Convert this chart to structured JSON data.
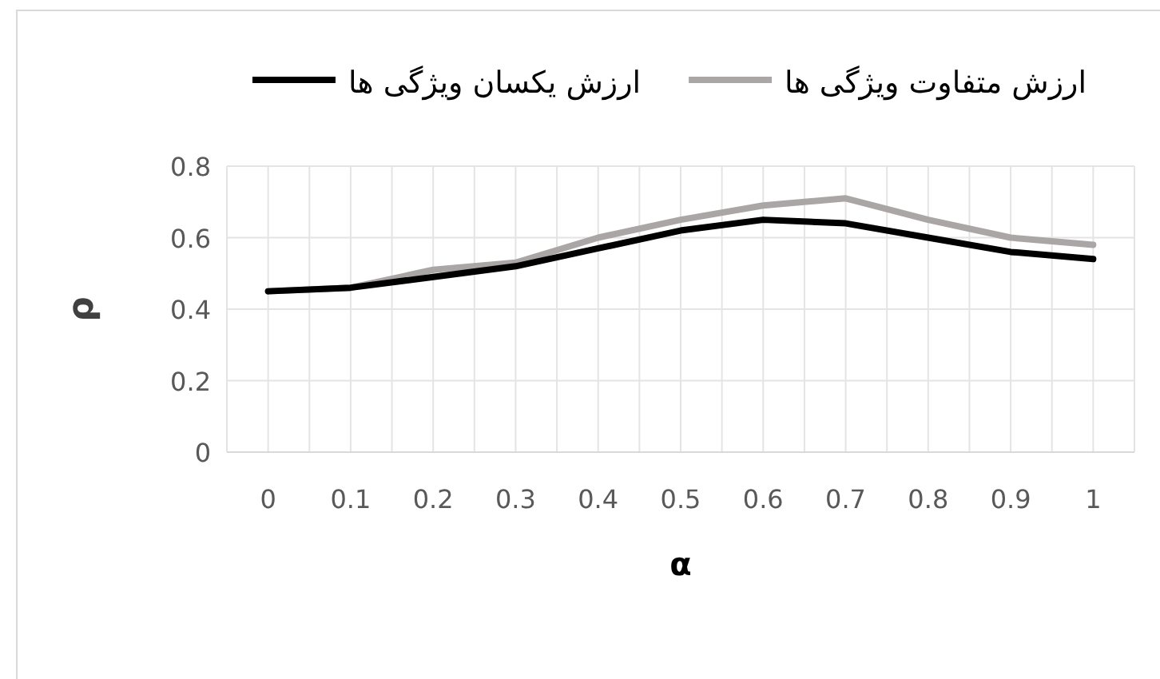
{
  "chart_data": {
    "type": "line",
    "xlabel": "α",
    "ylabel": "ρ",
    "categories": [
      "0",
      "0.1",
      "0.2",
      "0.3",
      "0.4",
      "0.5",
      "0.6",
      "0.7",
      "0.8",
      "0.9",
      "1"
    ],
    "series": [
      {
        "name": "ارزش یکسان ویژگی ها",
        "color": "#000000",
        "values": [
          0.45,
          0.46,
          0.49,
          0.52,
          0.57,
          0.62,
          0.65,
          0.64,
          0.6,
          0.56,
          0.54
        ]
      },
      {
        "name": "ارزش متفاوت ویژگی ها",
        "color": "#aaa6a6",
        "values": [
          0.45,
          0.46,
          0.51,
          0.53,
          0.6,
          0.65,
          0.69,
          0.71,
          0.65,
          0.6,
          0.58
        ]
      }
    ],
    "ylim": [
      0,
      0.8
    ],
    "yticks": [
      0,
      0.2,
      0.4,
      0.6,
      0.8
    ],
    "grid": true,
    "legend": "top",
    "marker": "none",
    "line_style": "solid"
  }
}
